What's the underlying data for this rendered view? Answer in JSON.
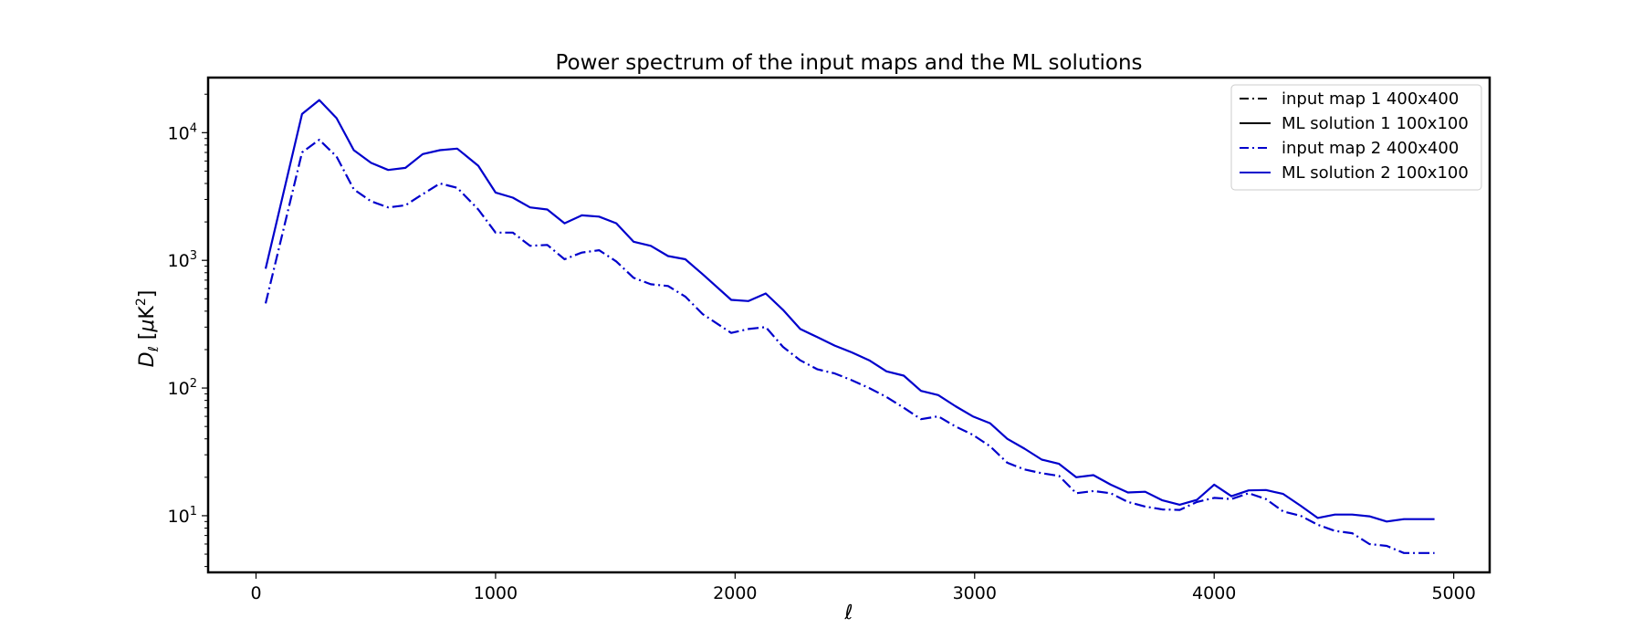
{
  "chart_data": {
    "type": "line",
    "title": "Power spectrum of the input maps and the ML solutions",
    "xlabel": "ℓ",
    "ylabel": "D_ℓ [μK²]",
    "xlim": [
      -200,
      5150
    ],
    "ylim": [
      3.6,
      27000
    ],
    "yscale": "log",
    "xticks": [
      0,
      1000,
      2000,
      3000,
      4000,
      5000
    ],
    "xtick_labels": [
      "0",
      "1000",
      "2000",
      "3000",
      "4000",
      "5000"
    ],
    "yticks": [
      10,
      100,
      1000,
      10000
    ],
    "ytick_labels": [
      {
        "base": "10",
        "exp": "1"
      },
      {
        "base": "10",
        "exp": "2"
      },
      {
        "base": "10",
        "exp": "3"
      },
      {
        "base": "10",
        "exp": "4"
      }
    ],
    "grid": false,
    "legend_position": "top-right",
    "x": [
      40,
      192,
      264,
      336,
      408,
      480,
      552,
      624,
      696,
      768,
      840,
      928,
      1000,
      1072,
      1144,
      1216,
      1288,
      1360,
      1432,
      1504,
      1576,
      1648,
      1720,
      1792,
      1864,
      1984,
      2056,
      2128,
      2200,
      2272,
      2344,
      2416,
      2488,
      2560,
      2632,
      2704,
      2776,
      2848,
      2920,
      2992,
      3064,
      3136,
      3208,
      3280,
      3352,
      3424,
      3496,
      3568,
      3640,
      3712,
      3784,
      3856,
      3928,
      4000,
      4072,
      4144,
      4216,
      4288,
      4360,
      4432,
      4504,
      4576,
      4648,
      4720,
      4792,
      4864,
      4920
    ],
    "series": [
      {
        "name": "input map 1 400x400",
        "color": "#000000",
        "style": "dashdot",
        "values": [
          460,
          7000,
          8800,
          6500,
          3600,
          2900,
          2600,
          2700,
          3300,
          4000,
          3700,
          2500,
          1650,
          1650,
          1300,
          1320,
          1020,
          1150,
          1200,
          980,
          730,
          650,
          630,
          520,
          380,
          270,
          290,
          300,
          210,
          165,
          140,
          130,
          115,
          100,
          85,
          70,
          57,
          60,
          50,
          43,
          35,
          26,
          23,
          21.5,
          20.5,
          15,
          15.6,
          15,
          12.8,
          11.8,
          11.2,
          11.1,
          12.8,
          13.8,
          13.5,
          15,
          13.5,
          10.8,
          10,
          8.5,
          7.6,
          7.3,
          6,
          5.8,
          5.1,
          5.1,
          5.1
        ],
        "visible": false
      },
      {
        "name": "ML solution 1 100x100",
        "color": "#000000",
        "style": "solid",
        "values": [
          860,
          14000,
          18000,
          13000,
          7300,
          5800,
          5100,
          5300,
          6800,
          7300,
          7500,
          5500,
          3400,
          3100,
          2600,
          2500,
          1950,
          2250,
          2200,
          1950,
          1400,
          1300,
          1080,
          1020,
          780,
          490,
          480,
          550,
          410,
          290,
          250,
          215,
          190,
          165,
          135,
          125,
          95,
          88,
          72,
          60,
          53,
          40,
          33.5,
          27.5,
          25.5,
          20,
          20.8,
          17.5,
          15.2,
          15.4,
          13.2,
          12.2,
          13.3,
          17.5,
          14.2,
          15.8,
          15.9,
          14.8,
          12,
          9.6,
          10.2,
          10.2,
          9.9,
          9,
          9.4,
          9.4,
          9.4
        ],
        "visible": false
      },
      {
        "name": "input map 2 400x400",
        "color": "#0000cc",
        "style": "dashdot",
        "values": [
          460,
          7000,
          8800,
          6500,
          3600,
          2900,
          2600,
          2700,
          3300,
          4000,
          3700,
          2500,
          1650,
          1650,
          1300,
          1320,
          1020,
          1150,
          1200,
          980,
          730,
          650,
          630,
          520,
          380,
          270,
          290,
          300,
          210,
          165,
          140,
          130,
          115,
          100,
          85,
          70,
          57,
          60,
          50,
          43,
          35,
          26,
          23,
          21.5,
          20.5,
          15,
          15.6,
          15,
          12.8,
          11.8,
          11.2,
          11.1,
          12.8,
          13.8,
          13.5,
          15,
          13.5,
          10.8,
          10,
          8.5,
          7.6,
          7.3,
          6,
          5.8,
          5.1,
          5.1,
          5.1
        ],
        "visible": true
      },
      {
        "name": "ML solution 2 100x100",
        "color": "#0000cc",
        "style": "solid",
        "values": [
          860,
          14000,
          18000,
          13000,
          7300,
          5800,
          5100,
          5300,
          6800,
          7300,
          7500,
          5500,
          3400,
          3100,
          2600,
          2500,
          1950,
          2250,
          2200,
          1950,
          1400,
          1300,
          1080,
          1020,
          780,
          490,
          480,
          550,
          410,
          290,
          250,
          215,
          190,
          165,
          135,
          125,
          95,
          88,
          72,
          60,
          53,
          40,
          33.5,
          27.5,
          25.5,
          20,
          20.8,
          17.5,
          15.2,
          15.4,
          13.2,
          12.2,
          13.3,
          17.5,
          14.2,
          15.8,
          15.9,
          14.8,
          12,
          9.6,
          10.2,
          10.2,
          9.9,
          9,
          9.4,
          9.4,
          9.4
        ],
        "visible": true
      }
    ]
  }
}
